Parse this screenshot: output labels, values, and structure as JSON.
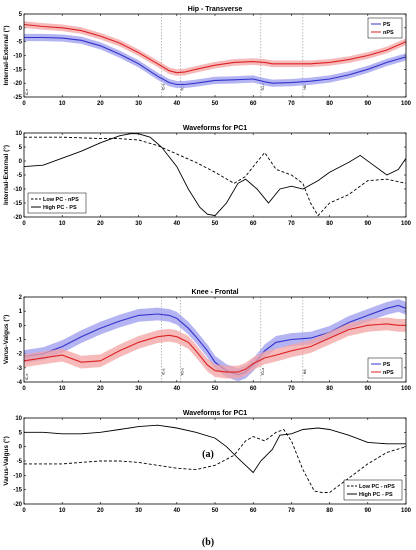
{
  "chart_data": [
    {
      "type": "line",
      "title": "Hip - Transverse",
      "xlabel": "",
      "ylabel": "Internal-External (°)",
      "xlim": [
        0,
        100
      ],
      "ylim": [
        -25,
        5
      ],
      "xticks": [
        0,
        10,
        20,
        30,
        40,
        50,
        60,
        70,
        80,
        90,
        100
      ],
      "yticks": [
        5,
        0,
        -5,
        -10,
        -15,
        -20,
        -25
      ],
      "grid": false,
      "legend": "top-right",
      "event_lines": [
        {
          "x": 0,
          "label": "IC-e"
        },
        {
          "x": 36,
          "label": "IC-a"
        },
        {
          "x": 41,
          "label": "TO-o"
        },
        {
          "x": 62,
          "label": "TO-a"
        },
        {
          "x": 73,
          "label": "HA"
        }
      ],
      "series": [
        {
          "name": "PS",
          "color": "#3333cc",
          "band_color": "#9b9bee",
          "x": [
            0,
            5,
            10,
            15,
            20,
            25,
            30,
            35,
            38,
            40,
            42,
            45,
            50,
            55,
            60,
            63,
            65,
            70,
            75,
            80,
            85,
            90,
            95,
            100
          ],
          "y": [
            -3.5,
            -3.5,
            -3.7,
            -4.5,
            -6.5,
            -9.5,
            -13,
            -17.5,
            -19.8,
            -20.5,
            -20.5,
            -20,
            -19,
            -18.8,
            -18.5,
            -19.5,
            -20,
            -19.8,
            -19.3,
            -18.5,
            -17,
            -15,
            -12.5,
            -10.5
          ],
          "band": 1.3
        },
        {
          "name": "nPS",
          "color": "#dd2222",
          "band_color": "#f3a3a3",
          "x": [
            0,
            5,
            10,
            15,
            20,
            25,
            30,
            35,
            38,
            40,
            42,
            45,
            50,
            55,
            60,
            63,
            65,
            70,
            75,
            80,
            85,
            90,
            95,
            100
          ],
          "y": [
            1.2,
            0.5,
            0,
            -1,
            -3,
            -5.5,
            -9,
            -13,
            -15.5,
            -16.2,
            -16,
            -15,
            -13.5,
            -12.5,
            -12.2,
            -12.5,
            -13,
            -13,
            -13,
            -12.5,
            -11.5,
            -10,
            -8,
            -5
          ],
          "band": 1.2
        }
      ]
    },
    {
      "type": "line",
      "title": "Waveforms for PC1",
      "xlabel": "",
      "ylabel": "Internal-External (°)",
      "xlim": [
        0,
        100
      ],
      "ylim": [
        -20,
        10
      ],
      "xticks": [
        0,
        10,
        20,
        30,
        40,
        50,
        60,
        70,
        80,
        90,
        100
      ],
      "yticks": [
        10,
        5,
        0,
        -5,
        -10,
        -15,
        -20
      ],
      "legend": "bottom-left",
      "series": [
        {
          "name": "Low PC - nPS",
          "style": "dashed",
          "x": [
            0,
            5,
            10,
            15,
            20,
            25,
            30,
            35,
            40,
            45,
            50,
            55,
            58,
            60,
            63,
            66,
            70,
            73,
            75,
            77,
            80,
            85,
            90,
            95,
            100
          ],
          "y": [
            8.5,
            8.5,
            8.5,
            8.3,
            8,
            8,
            7.5,
            5.5,
            2.5,
            -0.5,
            -4,
            -8,
            -5.5,
            -2,
            3,
            -3,
            -5,
            -8,
            -15,
            -19.5,
            -15,
            -12,
            -7,
            -6.5,
            -8
          ]
        },
        {
          "name": "High PC - PS",
          "style": "solid",
          "x": [
            0,
            5,
            10,
            15,
            20,
            25,
            28,
            30,
            33,
            36,
            40,
            43,
            46,
            48,
            50,
            53,
            56,
            58,
            61,
            64,
            67,
            70,
            73,
            77,
            80,
            85,
            88,
            91,
            95,
            98,
            100
          ],
          "y": [
            -2,
            -1.5,
            1,
            3.5,
            6.5,
            9,
            9.8,
            9.7,
            8.5,
            5,
            -2,
            -10,
            -16.5,
            -19,
            -19.5,
            -15,
            -8,
            -6.5,
            -10,
            -15,
            -10,
            -9,
            -10,
            -7,
            -4,
            -0.5,
            2,
            -1,
            -5,
            -3,
            1
          ]
        }
      ]
    },
    {
      "type": "line",
      "title": "Knee - Frontal",
      "xlabel": "",
      "ylabel": "Varus-Valgus (°)",
      "xlim": [
        0,
        100
      ],
      "ylim": [
        -4,
        2
      ],
      "xticks": [
        0,
        10,
        20,
        30,
        40,
        50,
        60,
        70,
        80,
        90,
        100
      ],
      "yticks": [
        2,
        1,
        0,
        -1,
        -2,
        -3,
        -4
      ],
      "grid": false,
      "legend": "bottom-right",
      "event_lines": [
        {
          "x": 0,
          "label": "IC-e"
        },
        {
          "x": 36,
          "label": "IC-a"
        },
        {
          "x": 41,
          "label": "TO-o"
        },
        {
          "x": 62,
          "label": "TO-a"
        },
        {
          "x": 73,
          "label": "HA"
        }
      ],
      "series": [
        {
          "name": "PS",
          "color": "#3333cc",
          "band_color": "#9b9bee",
          "x": [
            0,
            5,
            10,
            15,
            20,
            25,
            30,
            35,
            38,
            40,
            43,
            45,
            48,
            50,
            53,
            56,
            58,
            60,
            63,
            66,
            70,
            75,
            80,
            85,
            90,
            95,
            98,
            100
          ],
          "y": [
            -2.2,
            -2,
            -1.5,
            -0.8,
            -0.2,
            0.3,
            0.7,
            0.8,
            0.7,
            0.5,
            -0.2,
            -0.8,
            -1.8,
            -2.6,
            -3.2,
            -3.5,
            -3.3,
            -2.8,
            -1.8,
            -1.2,
            -1,
            -0.9,
            -0.5,
            0.2,
            0.7,
            1.2,
            1.4,
            1.2
          ],
          "band": 0.45
        },
        {
          "name": "nPS",
          "color": "#dd2222",
          "band_color": "#f3a3a3",
          "x": [
            0,
            5,
            10,
            15,
            20,
            25,
            30,
            35,
            38,
            40,
            43,
            45,
            48,
            50,
            53,
            56,
            58,
            60,
            63,
            66,
            70,
            75,
            80,
            85,
            90,
            95,
            98,
            100
          ],
          "y": [
            -2.5,
            -2.3,
            -2.1,
            -2.6,
            -2.5,
            -1.8,
            -1.2,
            -0.8,
            -0.7,
            -0.8,
            -1.2,
            -1.8,
            -2.8,
            -3.2,
            -3.3,
            -3.3,
            -3.1,
            -2.7,
            -2.3,
            -2.1,
            -1.8,
            -1.5,
            -0.9,
            -0.3,
            0,
            0.1,
            0,
            0
          ],
          "band": 0.45
        }
      ]
    },
    {
      "type": "line",
      "title": "Waveforms for PC1",
      "xlabel": "",
      "ylabel": "Varus-Valgus (°)",
      "xlim": [
        0,
        100
      ],
      "ylim": [
        -20,
        10
      ],
      "xticks": [
        0,
        10,
        20,
        30,
        40,
        50,
        60,
        70,
        80,
        90,
        100
      ],
      "yticks": [
        10,
        5,
        0,
        -5,
        -10,
        -15,
        -20
      ],
      "legend": "bottom-right",
      "series": [
        {
          "name": "Low PC - nPS",
          "style": "dashed",
          "x": [
            0,
            5,
            10,
            15,
            20,
            25,
            30,
            35,
            40,
            45,
            50,
            55,
            58,
            60,
            63,
            66,
            68,
            70,
            73,
            76,
            78,
            80,
            85,
            90,
            95,
            100
          ],
          "y": [
            -6,
            -6,
            -6,
            -5.5,
            -5,
            -5,
            -5.5,
            -6.5,
            -7.5,
            -8,
            -6.5,
            -3,
            2,
            3.5,
            2,
            5,
            6,
            2,
            -8,
            -15.5,
            -16,
            -16,
            -11,
            -6,
            -2,
            0
          ]
        },
        {
          "name": "High PC - PS",
          "style": "solid",
          "x": [
            0,
            5,
            10,
            15,
            20,
            25,
            30,
            35,
            40,
            45,
            50,
            53,
            56,
            58,
            60,
            62,
            65,
            67,
            70,
            73,
            77,
            80,
            85,
            90,
            95,
            100
          ],
          "y": [
            5,
            5,
            4.5,
            4.5,
            5,
            6,
            7,
            7.5,
            6.5,
            5,
            3,
            0,
            -4,
            -6.5,
            -9,
            -5,
            -1,
            4,
            4.5,
            6,
            6.5,
            6,
            4,
            1.5,
            1,
            1
          ]
        }
      ]
    }
  ],
  "captions": [
    "(a)",
    "(b)"
  ]
}
